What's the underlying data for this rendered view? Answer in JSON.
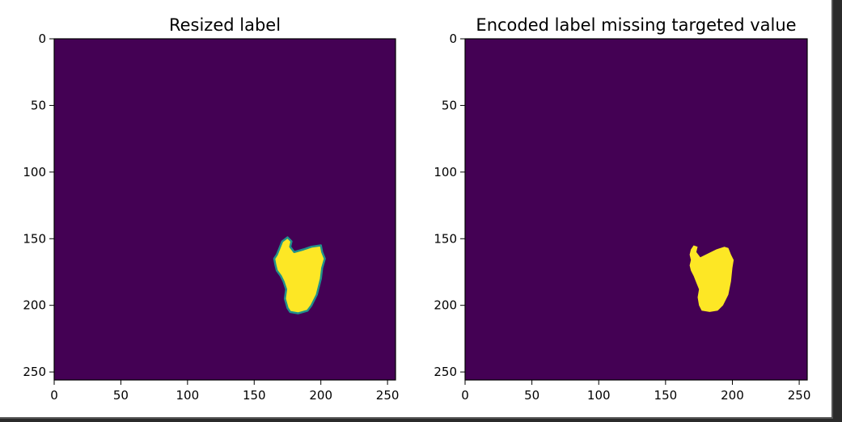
{
  "chart_data": [
    {
      "type": "heatmap",
      "title": "Resized label",
      "xlabel": "",
      "ylabel": "",
      "xlim": [
        0,
        256
      ],
      "ylim": [
        256,
        0
      ],
      "x_ticks": [
        0,
        50,
        100,
        150,
        200,
        250
      ],
      "y_ticks": [
        0,
        50,
        100,
        150,
        200,
        250
      ],
      "colormap": "viridis",
      "background_color": "#440154",
      "foreground_color": "#fde725",
      "edge_color": "#21918c",
      "background_value": 0,
      "foreground_value": 1,
      "anti_aliased_edges": true,
      "blob_outline": [
        [
          175,
          149
        ],
        [
          178,
          152
        ],
        [
          177,
          156
        ],
        [
          180,
          160
        ],
        [
          187,
          158
        ],
        [
          193,
          156
        ],
        [
          200,
          155
        ],
        [
          201,
          160
        ],
        [
          203,
          165
        ],
        [
          201,
          172
        ],
        [
          200,
          180
        ],
        [
          197,
          192
        ],
        [
          193,
          200
        ],
        [
          190,
          204
        ],
        [
          183,
          206
        ],
        [
          177,
          205
        ],
        [
          175,
          202
        ],
        [
          173,
          195
        ],
        [
          174,
          188
        ],
        [
          172,
          182
        ],
        [
          170,
          178
        ],
        [
          167,
          174
        ],
        [
          166,
          170
        ],
        [
          165,
          165
        ],
        [
          167,
          162
        ],
        [
          169,
          157
        ],
        [
          171,
          152
        ]
      ]
    },
    {
      "type": "heatmap",
      "title": "Encoded label missing targeted value",
      "xlabel": "",
      "ylabel": "",
      "xlim": [
        0,
        256
      ],
      "ylim": [
        256,
        0
      ],
      "x_ticks": [
        0,
        50,
        100,
        150,
        200,
        250
      ],
      "y_ticks": [
        0,
        50,
        100,
        150,
        200,
        250
      ],
      "colormap": "viridis",
      "background_color": "#440154",
      "foreground_color": "#fde725",
      "background_value": 0,
      "foreground_value": 1,
      "anti_aliased_edges": false,
      "blob_outline": [
        [
          171,
          155
        ],
        [
          174,
          156
        ],
        [
          173,
          160
        ],
        [
          176,
          164
        ],
        [
          182,
          161
        ],
        [
          188,
          158
        ],
        [
          194,
          156
        ],
        [
          197,
          157
        ],
        [
          199,
          162
        ],
        [
          201,
          166
        ],
        [
          200,
          172
        ],
        [
          199,
          182
        ],
        [
          197,
          192
        ],
        [
          193,
          200
        ],
        [
          189,
          204
        ],
        [
          183,
          205
        ],
        [
          177,
          204
        ],
        [
          175,
          200
        ],
        [
          174,
          194
        ],
        [
          175,
          188
        ],
        [
          173,
          183
        ],
        [
          171,
          178
        ],
        [
          169,
          174
        ],
        [
          168,
          170
        ],
        [
          169,
          166
        ],
        [
          168,
          162
        ],
        [
          169,
          158
        ]
      ]
    }
  ]
}
